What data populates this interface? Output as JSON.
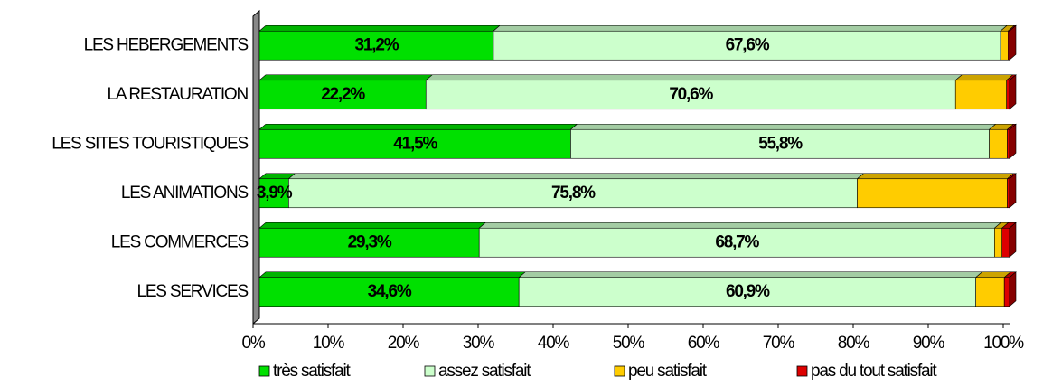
{
  "chart_data": {
    "type": "bar",
    "orientation": "horizontal",
    "stacked": true,
    "categories": [
      "LES HEBERGEMENTS",
      "LA RESTAURATION",
      "LES SITES TOURISTIQUES",
      "LES ANIMATIONS",
      "LES COMMERCES",
      "LES SERVICES"
    ],
    "series": [
      {
        "name": "très satisfait",
        "color": "#00e000",
        "values": [
          31.2,
          22.2,
          41.5,
          3.9,
          29.3,
          34.6
        ],
        "value_labels": [
          "31,2%",
          "22,2%",
          "41,5%",
          "3,9%",
          "29,3%",
          "34,6%"
        ]
      },
      {
        "name": "assez satisfait",
        "color": "#ccffcc",
        "values": [
          67.6,
          70.6,
          55.8,
          75.8,
          68.7,
          60.9
        ],
        "value_labels": [
          "67,6%",
          "70,6%",
          "55,8%",
          "75,8%",
          "68,7%",
          "60,9%"
        ]
      },
      {
        "name": "peu satisfait",
        "color": "#ffcc00",
        "values": [
          1.0,
          6.8,
          2.4,
          20.0,
          1.0,
          3.8
        ]
      },
      {
        "name": "pas du tout satisfait",
        "color": "#dd0000",
        "values": [
          0.2,
          0.4,
          0.3,
          0.3,
          1.0,
          0.7
        ]
      }
    ],
    "xlim": [
      0,
      100
    ],
    "xticks": [
      {
        "value": 0,
        "label": "0%"
      },
      {
        "value": 10,
        "label": "10%"
      },
      {
        "value": 20,
        "label": "20%"
      },
      {
        "value": 30,
        "label": "30%"
      },
      {
        "value": 40,
        "label": "40%"
      },
      {
        "value": 50,
        "label": "50%"
      },
      {
        "value": 60,
        "label": "60%"
      },
      {
        "value": 70,
        "label": "70%"
      },
      {
        "value": 80,
        "label": "80%"
      },
      {
        "value": 90,
        "label": "90%"
      },
      {
        "value": 100,
        "label": "100%"
      }
    ],
    "legend": "bottom"
  }
}
